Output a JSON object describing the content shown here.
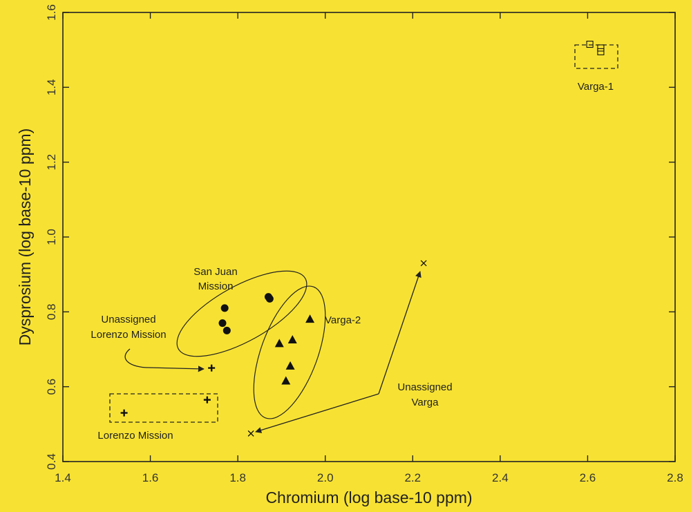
{
  "chart_data": {
    "type": "scatter",
    "xlabel": "Chromium (log base-10 ppm)",
    "ylabel": "Dysprosium (log base-10 ppm)",
    "xlim": [
      1.4,
      2.8
    ],
    "ylim": [
      0.4,
      1.6
    ],
    "xticks": [
      "1.4",
      "1.6",
      "1.8",
      "2.0",
      "2.2",
      "2.4",
      "2.6",
      "2.8"
    ],
    "yticks": [
      "0.4",
      "0.6",
      "0.8",
      "1.0",
      "1.2",
      "1.4",
      "1.6"
    ],
    "grid": false,
    "series": [
      {
        "name": "San Juan Mission",
        "marker": "circle",
        "points": [
          [
            1.77,
            0.81
          ],
          [
            1.765,
            0.77
          ],
          [
            1.775,
            0.75
          ],
          [
            1.87,
            0.84
          ],
          [
            1.873,
            0.835
          ]
        ]
      },
      {
        "name": "Varga-2",
        "marker": "triangle",
        "points": [
          [
            1.965,
            0.78
          ],
          [
            1.895,
            0.715
          ],
          [
            1.925,
            0.725
          ],
          [
            1.92,
            0.655
          ],
          [
            1.91,
            0.615
          ]
        ]
      },
      {
        "name": "Lorenzo Mission",
        "marker": "plus",
        "points": [
          [
            1.54,
            0.53
          ],
          [
            1.73,
            0.565
          ]
        ]
      },
      {
        "name": "Unassigned Lorenzo Mission",
        "marker": "plus",
        "points": [
          [
            1.74,
            0.65
          ]
        ]
      },
      {
        "name": "Varga-1",
        "marker": "square",
        "points": [
          [
            2.605,
            1.515
          ],
          [
            2.63,
            1.505
          ],
          [
            2.63,
            1.495
          ]
        ]
      },
      {
        "name": "Unassigned Varga",
        "marker": "x",
        "points": [
          [
            2.225,
            0.93
          ],
          [
            1.83,
            0.475
          ]
        ]
      }
    ],
    "annotations": {
      "san_juan_line1": "San Juan",
      "san_juan_line2": "Mission",
      "varga2": "Varga-2",
      "unassigned_lorenzo_line1": "Unassigned",
      "unassigned_lorenzo_line2": "Lorenzo Mission",
      "lorenzo": "Lorenzo Mission",
      "varga1": "Varga-1",
      "unassigned_varga_line1": "Unassigned",
      "unassigned_varga_line2": "Varga"
    }
  }
}
